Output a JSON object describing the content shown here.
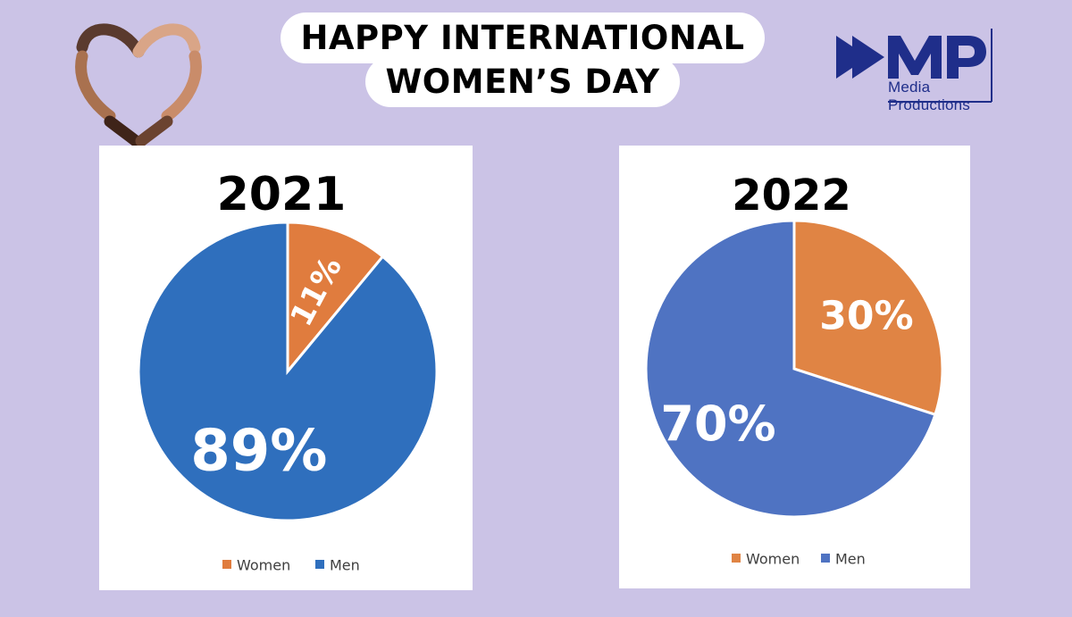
{
  "header": {
    "title_line1": "HAPPY INTERNATIONAL",
    "title_line2": "WOMEN’S DAY",
    "logo_text": "Media Productions"
  },
  "colors": {
    "background": "#cbc3e6",
    "women_2021": "#e07c3e",
    "men_2021": "#2f6fbd",
    "women_2022": "#e08444",
    "men_2022": "#4f73c2"
  },
  "chart_data": [
    {
      "type": "pie",
      "title": "2021",
      "series": [
        {
          "name": "Women",
          "value": 11,
          "label": "11%"
        },
        {
          "name": "Men",
          "value": 89,
          "label": "89%"
        }
      ],
      "legend": [
        "Women",
        "Men"
      ],
      "legend_position": "bottom"
    },
    {
      "type": "pie",
      "title": "2022",
      "series": [
        {
          "name": "Women",
          "value": 30,
          "label": "30%"
        },
        {
          "name": "Men",
          "value": 70,
          "label": "70%"
        }
      ],
      "legend": [
        "Women",
        "Men"
      ],
      "legend_position": "bottom"
    }
  ]
}
